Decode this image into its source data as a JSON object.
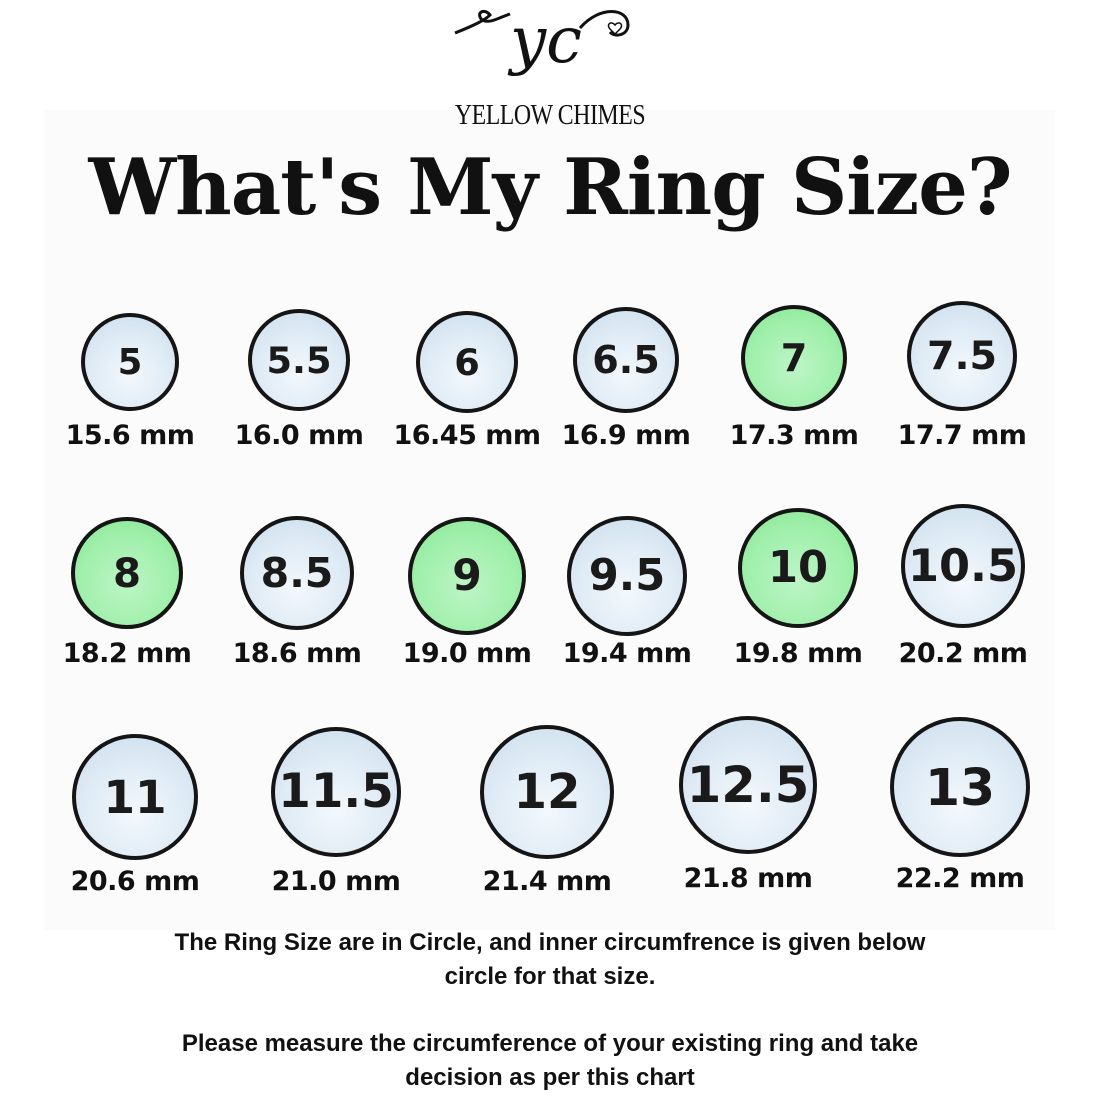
{
  "logo": {
    "monogram": "yc",
    "brand": "YELLOW CHIMES"
  },
  "title": "What's My Ring Size?",
  "colors": {
    "highlight": "#9fefaa",
    "default": "#dce9f4",
    "border": "#151515"
  },
  "rings": [
    {
      "size": "5",
      "mm": "15.6 mm",
      "highlight": false
    },
    {
      "size": "5.5",
      "mm": "16.0 mm",
      "highlight": false
    },
    {
      "size": "6",
      "mm": "16.45 mm",
      "highlight": false
    },
    {
      "size": "6.5",
      "mm": "16.9 mm",
      "highlight": false
    },
    {
      "size": "7",
      "mm": "17.3 mm",
      "highlight": true
    },
    {
      "size": "7.5",
      "mm": "17.7 mm",
      "highlight": false
    },
    {
      "size": "8",
      "mm": "18.2 mm",
      "highlight": true
    },
    {
      "size": "8.5",
      "mm": "18.6 mm",
      "highlight": false
    },
    {
      "size": "9",
      "mm": "19.0 mm",
      "highlight": true
    },
    {
      "size": "9.5",
      "mm": "19.4 mm",
      "highlight": false
    },
    {
      "size": "10",
      "mm": "19.8 mm",
      "highlight": true
    },
    {
      "size": "10.5",
      "mm": "20.2 mm",
      "highlight": false
    },
    {
      "size": "11",
      "mm": "20.6 mm",
      "highlight": false
    },
    {
      "size": "11.5",
      "mm": "21.0 mm",
      "highlight": false
    },
    {
      "size": "12",
      "mm": "21.4 mm",
      "highlight": false
    },
    {
      "size": "12.5",
      "mm": "21.8 mm",
      "highlight": false
    },
    {
      "size": "13",
      "mm": "22.2 mm",
      "highlight": false
    }
  ],
  "notes": {
    "line1": "The Ring Size are in Circle, and inner circumfrence is  given below",
    "line2": "circle for that size.",
    "line3": "Please measure the circumference of your existing ring and take",
    "line4": "decision as per this chart"
  }
}
